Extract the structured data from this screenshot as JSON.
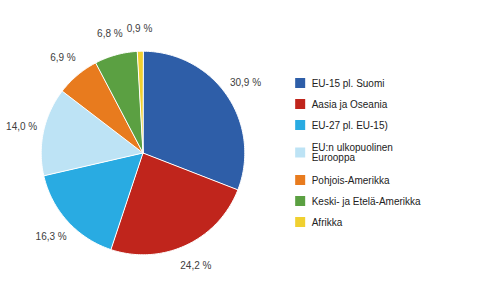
{
  "chart_data": {
    "type": "pie",
    "categories": [
      "EU-15 pl. Suomi",
      "Aasia ja Oseania",
      "EU-27 pl. EU-15)",
      "EU:n ulkopuolinen\nEurooppa",
      "Pohjois-Amerikka",
      "Keski- ja Etelä-Amerikka",
      "Afrikka"
    ],
    "values": [
      30.9,
      24.2,
      16.3,
      14.0,
      6.9,
      6.8,
      0.9
    ],
    "value_labels": [
      "30,9 %",
      "24,2 %",
      "16,3 %",
      "14,0 %",
      "6,9 %",
      "6,8 %",
      "0,9 %"
    ],
    "colors": [
      "#2E5EA8",
      "#C0251C",
      "#29ABE2",
      "#BDE3F5",
      "#E87B1E",
      "#5BA042",
      "#F0D030"
    ],
    "data_labels": true,
    "legend": "right"
  }
}
